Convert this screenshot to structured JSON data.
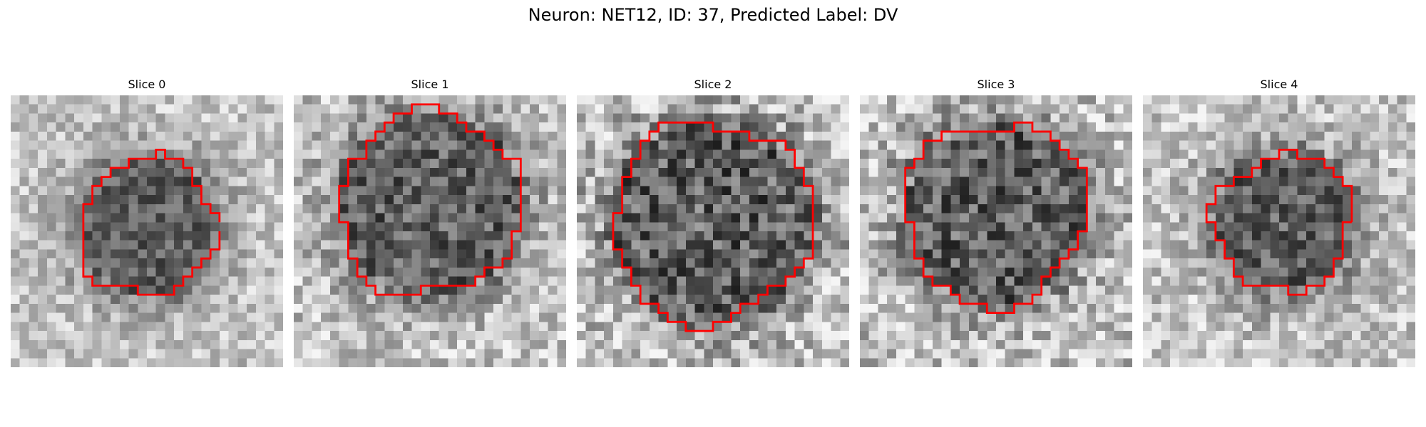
{
  "figure": {
    "title": "Neuron: NET12, ID: 37, Predicted Label: DV"
  },
  "outline_color": "#ff0000",
  "panels": [
    {
      "title": "Slice 0"
    },
    {
      "title": "Slice 1"
    },
    {
      "title": "Slice 2"
    },
    {
      "title": "Slice 3"
    },
    {
      "title": "Slice 4"
    }
  ]
}
